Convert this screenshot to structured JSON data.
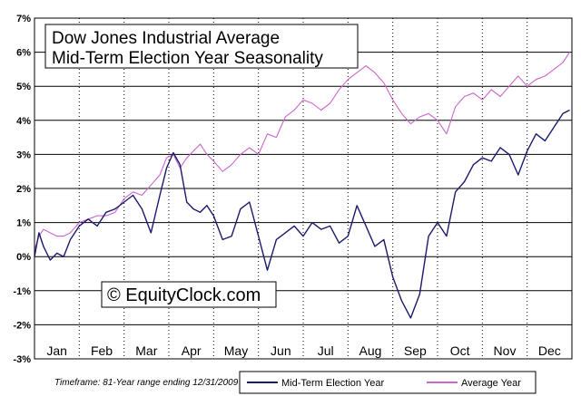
{
  "chart_data": {
    "type": "line",
    "title": "Dow Jones Industrial Average",
    "subtitle": "Mid-Term Election Year Seasonality",
    "watermark": "© EquityClock.com",
    "footnote": "Timeframe: 81-Year range ending 12/31/2009",
    "ylim": [
      -3,
      7
    ],
    "yticks": [
      "7%",
      "6%",
      "5%",
      "4%",
      "3%",
      "2%",
      "1%",
      "0%",
      "-1%",
      "-2%",
      "-3%"
    ],
    "categories": [
      "Jan",
      "Feb",
      "Mar",
      "Apr",
      "May",
      "Jun",
      "Jul",
      "Aug",
      "Sep",
      "Oct",
      "Nov",
      "Dec"
    ],
    "grid": true,
    "legend_position": "bottom-right",
    "colors": {
      "midterm": "#1a1a6e",
      "average": "#cc66cc"
    },
    "series": [
      {
        "name": "Mid-Term Election Year",
        "x": [
          0,
          0.1,
          0.2,
          0.35,
          0.5,
          0.65,
          0.8,
          1.0,
          1.2,
          1.4,
          1.6,
          1.8,
          2.0,
          2.2,
          2.4,
          2.6,
          2.8,
          2.95,
          3.1,
          3.25,
          3.4,
          3.55,
          3.7,
          3.85,
          4.0,
          4.2,
          4.4,
          4.6,
          4.8,
          5.0,
          5.2,
          5.4,
          5.6,
          5.8,
          6.0,
          6.2,
          6.4,
          6.6,
          6.8,
          7.0,
          7.2,
          7.4,
          7.6,
          7.8,
          8.0,
          8.2,
          8.4,
          8.6,
          8.8,
          9.0,
          9.2,
          9.4,
          9.6,
          9.8,
          10.0,
          10.2,
          10.4,
          10.6,
          10.8,
          11.0,
          11.2,
          11.4,
          11.6,
          11.8,
          11.95
        ],
        "values": [
          0.0,
          0.7,
          0.3,
          -0.1,
          0.1,
          0.0,
          0.5,
          0.9,
          1.1,
          0.9,
          1.3,
          1.4,
          1.6,
          1.8,
          1.4,
          0.7,
          1.8,
          2.6,
          3.05,
          2.7,
          1.6,
          1.4,
          1.3,
          1.5,
          1.2,
          0.5,
          0.6,
          1.4,
          1.6,
          0.6,
          -0.4,
          0.5,
          0.7,
          0.9,
          0.6,
          1.0,
          0.8,
          0.9,
          0.4,
          0.6,
          1.5,
          0.9,
          0.3,
          0.5,
          -0.6,
          -1.3,
          -1.8,
          -1.1,
          0.6,
          1.0,
          0.6,
          1.9,
          2.2,
          2.7,
          2.9,
          2.8,
          3.2,
          3.0,
          2.4,
          3.1,
          3.6,
          3.4,
          3.8,
          4.2,
          4.3
        ]
      },
      {
        "name": "Average Year",
        "x": [
          0,
          0.1,
          0.2,
          0.35,
          0.5,
          0.65,
          0.8,
          1.0,
          1.2,
          1.4,
          1.6,
          1.8,
          2.0,
          2.2,
          2.4,
          2.6,
          2.8,
          2.95,
          3.1,
          3.25,
          3.4,
          3.55,
          3.7,
          3.85,
          4.0,
          4.2,
          4.4,
          4.6,
          4.8,
          5.0,
          5.2,
          5.4,
          5.6,
          5.8,
          6.0,
          6.2,
          6.4,
          6.6,
          6.8,
          7.0,
          7.2,
          7.4,
          7.6,
          7.8,
          8.0,
          8.2,
          8.4,
          8.6,
          8.8,
          9.0,
          9.2,
          9.4,
          9.6,
          9.8,
          10.0,
          10.2,
          10.4,
          10.6,
          10.8,
          11.0,
          11.2,
          11.4,
          11.6,
          11.8,
          11.95
        ],
        "values": [
          0.2,
          0.6,
          0.8,
          0.7,
          0.6,
          0.6,
          0.7,
          1.0,
          1.1,
          1.2,
          1.2,
          1.3,
          1.7,
          1.9,
          1.8,
          2.1,
          2.4,
          2.9,
          3.0,
          2.6,
          2.9,
          3.1,
          3.3,
          3.0,
          2.8,
          2.5,
          2.7,
          3.0,
          3.2,
          3.0,
          3.6,
          3.5,
          4.1,
          4.3,
          4.6,
          4.5,
          4.3,
          4.5,
          4.9,
          5.2,
          5.4,
          5.6,
          5.4,
          5.1,
          4.6,
          4.2,
          3.9,
          4.1,
          4.2,
          4.0,
          3.6,
          4.4,
          4.7,
          4.8,
          4.6,
          4.9,
          4.7,
          5.0,
          5.3,
          5.0,
          5.2,
          5.3,
          5.5,
          5.7,
          6.0
        ]
      }
    ]
  },
  "legend": {
    "items": [
      "Mid-Term Election Year",
      "Average Year"
    ]
  }
}
